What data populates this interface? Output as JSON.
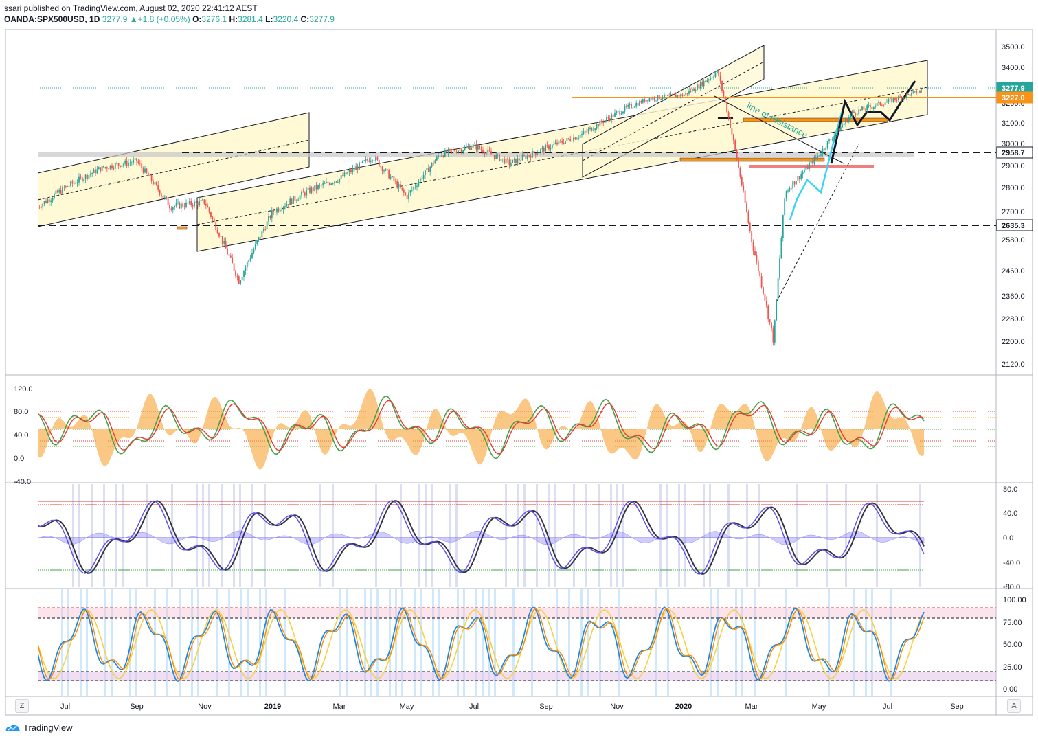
{
  "header": {
    "published": "ssari published on TradingView.com, August 02, 2020 22:41:12 AEST",
    "symbol": "OANDA:SPX500USD, 1D",
    "last": "3277.9",
    "change": "+1.8 (+0.05%)",
    "open_label": "O:",
    "open": "3276.1",
    "high_label": "H:",
    "high": "3281.4",
    "low_label": "L:",
    "low": "3220.4",
    "close_label": "C:",
    "close": "3277.9"
  },
  "colors": {
    "up": "#26a69a",
    "down": "#ef5350",
    "channel": "#fff9d6",
    "orange": "#f7931a",
    "cyan": "#38d4f5",
    "purple": "#5b4ee8",
    "gold": "#f5c518",
    "blue": "#2979ff"
  },
  "price_axis": {
    "ticks": [
      "3500.0",
      "3400.0",
      "3300.0",
      "3200.0",
      "3100.0",
      "3000.0",
      "2900.0",
      "2800.0",
      "2700.0",
      "2580.0",
      "2460.0",
      "2360.0",
      "2280.0",
      "2200.0",
      "2120.0"
    ],
    "badges": [
      {
        "label": "3277.9",
        "color": "#26a69a",
        "text_color": "#ffffff"
      },
      {
        "label": "3227.0",
        "color": "#f7931a",
        "text_color": "#ffffff"
      },
      {
        "label": "2958.7",
        "color": "#ffffff",
        "text_color": "#131722"
      },
      {
        "label": "2635.3",
        "color": "#ffffff",
        "text_color": "#131722"
      }
    ]
  },
  "annotation": "line of resistance",
  "time_axis": [
    "Jul",
    "Sep",
    "Nov",
    "2019",
    "Mar",
    "May",
    "Jul",
    "Sep",
    "Nov",
    "2020",
    "Mar",
    "May",
    "Jul",
    "Sep"
  ],
  "panes": {
    "p1_ticks": [
      "120.0",
      "80.0",
      "40.0",
      "0.0",
      "-40.0"
    ],
    "p2_ticks": [
      "80.0",
      "40.0",
      "0.0",
      "-40.0",
      "-80.0"
    ],
    "p3_ticks": [
      "100.00",
      "75.00",
      "50.00",
      "25.00",
      "0.00"
    ]
  },
  "buttons": {
    "z": "Z",
    "a": "A"
  },
  "brand": "TradingView",
  "chart_data": {
    "type": "candlestick",
    "symbol": "OANDA:SPX500USD",
    "interval": "1D",
    "ohlc_last": {
      "open": 3276.1,
      "high": 3281.4,
      "low": 3220.4,
      "close": 3277.9
    },
    "approx_closes": [
      {
        "x": "2018-06",
        "y": 2720
      },
      {
        "x": "2018-07",
        "y": 2800
      },
      {
        "x": "2018-08",
        "y": 2890
      },
      {
        "x": "2018-09",
        "y": 2920
      },
      {
        "x": "2018-10",
        "y": 2720
      },
      {
        "x": "2018-11",
        "y": 2740
      },
      {
        "x": "2018-12",
        "y": 2420
      },
      {
        "x": "2019-01",
        "y": 2700
      },
      {
        "x": "2019-02",
        "y": 2780
      },
      {
        "x": "2019-03",
        "y": 2840
      },
      {
        "x": "2019-04",
        "y": 2940
      },
      {
        "x": "2019-05",
        "y": 2760
      },
      {
        "x": "2019-06",
        "y": 2950
      },
      {
        "x": "2019-07",
        "y": 2990
      },
      {
        "x": "2019-08",
        "y": 2910
      },
      {
        "x": "2019-09",
        "y": 2980
      },
      {
        "x": "2019-10",
        "y": 3040
      },
      {
        "x": "2019-11",
        "y": 3150
      },
      {
        "x": "2019-12",
        "y": 3230
      },
      {
        "x": "2020-01",
        "y": 3250
      },
      {
        "x": "2020-02",
        "y": 3380
      },
      {
        "x": "2020-03",
        "y": 2580
      },
      {
        "x": "2020-03-23",
        "y": 2200
      },
      {
        "x": "2020-04",
        "y": 2780
      },
      {
        "x": "2020-05",
        "y": 2950
      },
      {
        "x": "2020-06",
        "y": 3150
      },
      {
        "x": "2020-07",
        "y": 3210
      },
      {
        "x": "2020-07-31",
        "y": 3277.9
      }
    ],
    "horizontal_levels": [
      3277.9,
      3227.0,
      2958.7,
      2635.3
    ]
  }
}
